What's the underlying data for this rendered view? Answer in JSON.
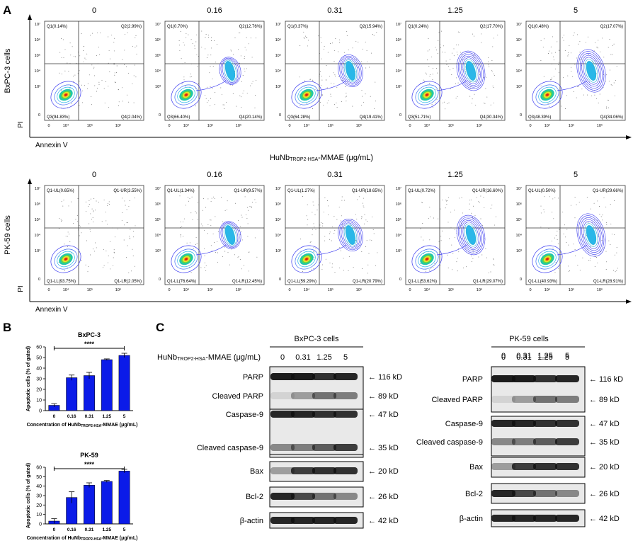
{
  "panel_labels": {
    "a": "A",
    "b": "B",
    "c": "C"
  },
  "flow": {
    "doses": [
      "0",
      "0.16",
      "0.31",
      "1.25",
      "5"
    ],
    "x_axis_label": "Annexin V",
    "y_axis_label": "PI",
    "x_tick_labels": [
      "0",
      "10⁴",
      "10⁵",
      "10⁶"
    ],
    "y_tick_labels": [
      "10⁷",
      "10⁶",
      "10⁵",
      "10⁴",
      "10³",
      "0"
    ],
    "middle_title": "HuNb",
    "middle_title_sub": "TROP2-HSA",
    "middle_title_end": "-MMAE (μg/mL)",
    "rows": [
      {
        "cell_label": "BxPC-3 cells",
        "plots": [
          {
            "ul": "Q1(0.14%)",
            "ur": "Q2(2.99%)",
            "ll": "Q3(94.83%)",
            "lr": "Q4(2.04%)"
          },
          {
            "ul": "Q1(0.70%)",
            "ur": "Q2(12.76%)",
            "ll": "Q3(66.40%)",
            "lr": "Q4(20.14%)"
          },
          {
            "ul": "Q1(0.37%)",
            "ur": "Q2(15.94%)",
            "ll": "Q3(64.28%)",
            "lr": "Q4(19.41%)"
          },
          {
            "ul": "Q1(0.24%)",
            "ur": "Q2(17.70%)",
            "ll": "Q3(51.71%)",
            "lr": "Q4(30.34%)"
          },
          {
            "ul": "Q1(0.48%)",
            "ur": "Q2(17.07%)",
            "ll": "Q3(48.39%)",
            "lr": "Q4(34.06%)"
          }
        ]
      },
      {
        "cell_label": "PK-59 cells",
        "plots": [
          {
            "ul": "Q1-UL(0.65%)",
            "ur": "Q1-UR(3.55%)",
            "ll": "Q1-LL(93.75%)",
            "lr": "Q1-LR(2.05%)"
          },
          {
            "ul": "Q1-UL(1.34%)",
            "ur": "Q1-UR(9.57%)",
            "ll": "Q1-LL(76.64%)",
            "lr": "Q1-LR(12.45%)"
          },
          {
            "ul": "Q1-UL(1.27%)",
            "ur": "Q1-UR(18.65%)",
            "ll": "Q1-LL(59.29%)",
            "lr": "Q1-LR(20.79%)"
          },
          {
            "ul": "Q1-UL(0.72%)",
            "ur": "Q1-UR(16.60%)",
            "ll": "Q1-LL(53.62%)",
            "lr": "Q1-LR(29.07%)"
          },
          {
            "ul": "Q1-UL(0.50%)",
            "ur": "Q1-UR(29.66%)",
            "ll": "Q1-LL(40.93%)",
            "lr": "Q1-LR(28.91%)"
          }
        ]
      }
    ]
  },
  "chart_data": [
    {
      "type": "bar",
      "title": "BxPC-3",
      "categories": [
        "0",
        "0.16",
        "0.31",
        "1.25",
        "5"
      ],
      "values": [
        5,
        31,
        33,
        48,
        52
      ],
      "errors": [
        1.5,
        2.5,
        3,
        0.7,
        2
      ],
      "ylabel": "Apoptotic cells (% of gated)",
      "xlabel_pre": "Concentration of HuNb",
      "xlabel_sub": "TROP2-HSA",
      "xlabel_post": "-MMAE (μg/mL)",
      "ylim": [
        0,
        60
      ],
      "yticks": [
        "0",
        "10",
        "20",
        "30",
        "40",
        "50",
        "60"
      ],
      "significance": "****",
      "color": "#0b1be8"
    },
    {
      "type": "bar",
      "title": "PK-59",
      "categories": [
        "0",
        "0.16",
        "0.31",
        "1.25",
        "5"
      ],
      "values": [
        3,
        28,
        41,
        45,
        56
      ],
      "errors": [
        2.5,
        6,
        2.5,
        1,
        1.8
      ],
      "ylabel": "Apoptotic cells (% of gated)",
      "xlabel_pre": "Concentration of HuNb",
      "xlabel_sub": "TROP2-HSA",
      "xlabel_post": "-MMAE (μg/mL)",
      "ylim": [
        0,
        60
      ],
      "yticks": [
        "0",
        "10",
        "20",
        "30",
        "40",
        "50",
        "60"
      ],
      "significance": "****",
      "color": "#0b1be8"
    }
  ],
  "western": {
    "treatment_pre": "HuNb",
    "treatment_sub": "TROP2-HSA",
    "treatment_post": "-MMAE (μg/mL)",
    "doses": [
      "0",
      "0.31",
      "1.25",
      "5"
    ],
    "left": {
      "header": "BxPC-3 cells",
      "proteins": [
        "PARP",
        "Cleaved PARP",
        "Caspase-9",
        "Cleaved caspase-9",
        "Bax",
        "Bcl-2",
        "β-actin"
      ],
      "sizes": [
        "← 116 kD",
        "← 89 kD",
        "← 47 kD",
        "← 35 kD",
        "← 20 kD",
        "← 26 kD",
        "← 42 kD"
      ]
    },
    "right": {
      "header": "PK-59 cells",
      "proteins": [
        "PARP",
        "Cleaved PARP",
        "Caspase-9",
        "Cleaved caspase-9",
        "Bax",
        "Bcl-2",
        "β-actin"
      ],
      "sizes": [
        "← 116 kD",
        "← 89 kD",
        "← 47 kD",
        "← 35 kD",
        "← 20 kD",
        "← 26 kD",
        "← 42 kD"
      ]
    }
  }
}
